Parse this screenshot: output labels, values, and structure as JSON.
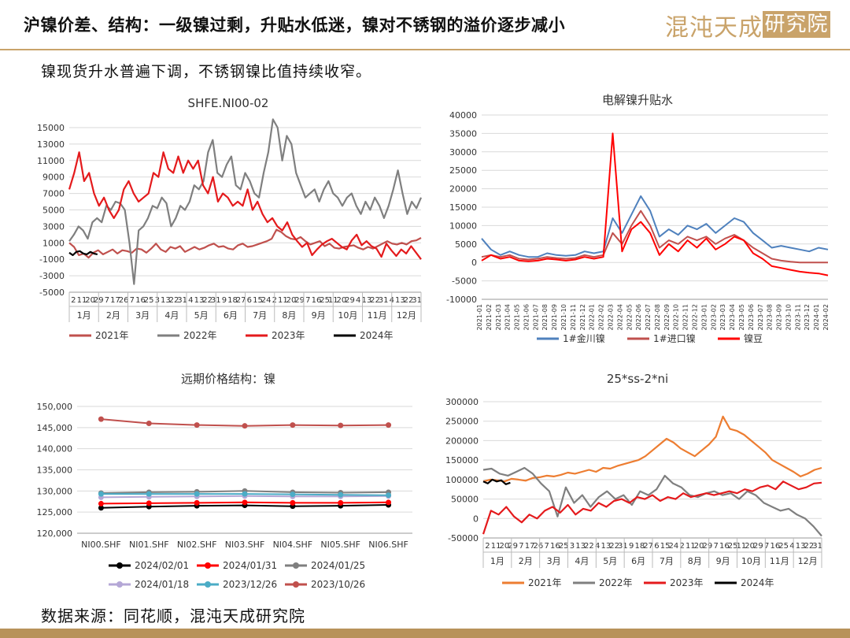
{
  "header": {
    "title": "沪镍价差、结构：一级镍过剩，升贴水低迷，镍对不锈钢的溢价逐步减小",
    "logo_main": "混沌天成",
    "logo_box": "研究院",
    "subtitle": "镍现货升水普遍下调，不锈钢镍比值持续收窄。"
  },
  "footer": {
    "source": "数据来源：同花顺，混沌天成研究院"
  },
  "colors": {
    "accent": "#c9a36a",
    "footer_bar": "#b8925a"
  },
  "chart_data": [
    {
      "type": "line",
      "title": "SHFE.NI00-02",
      "ylim": [
        -5000,
        15000
      ],
      "yticks": [
        "15000",
        "13000",
        "11000",
        "9000",
        "7000",
        "5000",
        "3000",
        "1000",
        "-1000",
        "-3000",
        "-5000"
      ],
      "x_day_ticks": [
        "2",
        "11",
        "20",
        "29",
        "7",
        "17",
        "26",
        "7",
        "16",
        "25",
        "3",
        "13",
        "22",
        "31",
        "4",
        "13",
        "22",
        "31",
        "9",
        "18",
        "27",
        "6",
        "15",
        "24",
        "2",
        "11",
        "20",
        "29",
        "7",
        "16",
        "25",
        "11",
        "20",
        "29",
        "4",
        "13",
        "22",
        "31",
        "4",
        "13",
        "22",
        "31"
      ],
      "months": [
        "1月",
        "2月",
        "3月",
        "4月",
        "5月",
        "6月",
        "7月",
        "8月",
        "9月",
        "10月",
        "11月",
        "12月"
      ],
      "series": [
        {
          "name": "2021年",
          "color": "#c0504d",
          "values": [
            1000,
            500,
            -500,
            -300,
            -800,
            -200,
            100,
            -400,
            -100,
            200,
            -300,
            100,
            0,
            -200,
            300,
            200,
            -200,
            300,
            900,
            200,
            -100,
            500,
            300,
            600,
            -100,
            200,
            500,
            200,
            400,
            700,
            900,
            500,
            600,
            300,
            200,
            700,
            900,
            500,
            600,
            800,
            1000,
            1200,
            1500,
            2600,
            2300,
            1800,
            1500,
            1400,
            1700,
            1200,
            800,
            1000,
            1200,
            600,
            900,
            400,
            300,
            500,
            600,
            700,
            400,
            200,
            500,
            300,
            600,
            900,
            1200,
            900,
            800,
            1000,
            800,
            1200,
            1300,
            1600
          ]
        },
        {
          "name": "2022年",
          "color": "#7f7f7f",
          "values": [
            1200,
            2000,
            3000,
            2500,
            1500,
            3500,
            4000,
            3500,
            5500,
            5000,
            6000,
            5800,
            5000,
            1000,
            -4000,
            2500,
            3000,
            4000,
            5500,
            5200,
            6500,
            5800,
            3000,
            4000,
            5500,
            5000,
            6000,
            8000,
            7500,
            8500,
            12000,
            13500,
            9500,
            9000,
            10500,
            11500,
            8000,
            7500,
            9500,
            8500,
            7000,
            6500,
            9500,
            12000,
            16000,
            15000,
            11000,
            14000,
            13000,
            9500,
            8000,
            6500,
            7000,
            7500,
            6000,
            7500,
            8500,
            7000,
            6500,
            5500,
            6500,
            7000,
            5500,
            4500,
            6000,
            5000,
            6500,
            5500,
            4000,
            5500,
            7500,
            9800,
            7000,
            4500,
            6000,
            5200,
            6500
          ]
        },
        {
          "name": "2023年",
          "color": "#e41a1c",
          "values": [
            7500,
            9500,
            12000,
            8500,
            9500,
            7000,
            5500,
            6500,
            5000,
            4000,
            5000,
            7500,
            8500,
            7000,
            6000,
            6500,
            7000,
            9500,
            9000,
            12000,
            10000,
            9500,
            11500,
            9500,
            11000,
            10000,
            11000,
            8000,
            7000,
            9000,
            6000,
            7000,
            6500,
            5500,
            6000,
            5500,
            7500,
            5000,
            6000,
            4500,
            3500,
            4000,
            3000,
            2500,
            3500,
            2000,
            1200,
            500,
            1000,
            -500,
            200,
            800,
            1200,
            1500,
            1000,
            500,
            200,
            1300,
            2000,
            700,
            1200,
            600,
            300,
            -700,
            900,
            100,
            -600,
            200,
            -300,
            600,
            -200,
            -1000
          ]
        },
        {
          "name": "2024年",
          "color": "#000000",
          "values": [
            -200,
            -500,
            -100,
            0,
            -300,
            -400,
            -100,
            -300,
            -400
          ]
        }
      ]
    },
    {
      "type": "line",
      "title": "电解镍升贴水",
      "ylim": [
        -10000,
        40000
      ],
      "yticks": [
        "40000",
        "35000",
        "30000",
        "25000",
        "20000",
        "15000",
        "10000",
        "5000",
        "0",
        "-5000",
        "-10000"
      ],
      "x": [
        "2021-01",
        "2021-02",
        "2021-03",
        "2021-04",
        "2021-05",
        "2021-06",
        "2021-07",
        "2021-08",
        "2021-09",
        "2021-10",
        "2021-11",
        "2021-12",
        "2022-01",
        "2022-02",
        "2022-03",
        "2022-04",
        "2022-05",
        "2022-06",
        "2022-07",
        "2022-08",
        "2022-09",
        "2022-10",
        "2022-11",
        "2022-12",
        "2023-01",
        "2023-02",
        "2023-03",
        "2023-04",
        "2023-05",
        "2023-06",
        "2023-07",
        "2023-08",
        "2023-09",
        "2023-10",
        "2023-11",
        "2023-12",
        "2024-01",
        "2024-02"
      ],
      "series": [
        {
          "name": "1#金川镍",
          "color": "#4f81bd",
          "values": [
            6500,
            3500,
            2000,
            3000,
            2000,
            1500,
            1500,
            2500,
            2000,
            1800,
            2000,
            3000,
            2500,
            3000,
            12000,
            8000,
            13000,
            18000,
            14000,
            7000,
            9000,
            7500,
            10000,
            9000,
            10500,
            8000,
            10000,
            12000,
            11000,
            8000,
            6000,
            4000,
            4500,
            4000,
            3500,
            3000,
            4000,
            3500
          ]
        },
        {
          "name": "1#进口镍",
          "color": "#c0504d",
          "values": [
            1500,
            2000,
            1500,
            2000,
            1000,
            800,
            1000,
            1500,
            1200,
            1000,
            1200,
            2000,
            1500,
            2000,
            8000,
            5000,
            10000,
            14000,
            10000,
            4000,
            6000,
            5000,
            7000,
            6000,
            7000,
            5000,
            6500,
            7500,
            6000,
            4000,
            2500,
            1000,
            500,
            200,
            0,
            0,
            0,
            0
          ]
        },
        {
          "name": "镍豆",
          "color": "#ff0000",
          "values": [
            500,
            2000,
            1000,
            1500,
            500,
            300,
            500,
            1000,
            800,
            500,
            800,
            1500,
            1000,
            1500,
            35000,
            3000,
            9000,
            11000,
            8000,
            2000,
            5000,
            3000,
            6000,
            4000,
            6500,
            3500,
            5000,
            7000,
            6000,
            2500,
            1000,
            -1000,
            -1500,
            -2000,
            -2500,
            -2800,
            -3000,
            -3500
          ]
        }
      ]
    },
    {
      "type": "line",
      "title": "远期价格结构：镍",
      "ylim": [
        120000,
        150000
      ],
      "yticks": [
        "150,000",
        "145,000",
        "140,000",
        "135,000",
        "130,000",
        "125,000",
        "120,000"
      ],
      "categories": [
        "NI00.SHF",
        "NI01.SHF",
        "NI02.SHF",
        "NI03.SHF",
        "NI04.SHF",
        "NI05.SHF",
        "NI06.SHF"
      ],
      "series": [
        {
          "name": "2024/02/01",
          "color": "#000000",
          "values": [
            126000,
            126300,
            126500,
            126600,
            126400,
            126500,
            126700
          ]
        },
        {
          "name": "2024/01/31",
          "color": "#ff0000",
          "values": [
            127000,
            127100,
            127200,
            127300,
            127200,
            127200,
            127300
          ]
        },
        {
          "name": "2024/01/25",
          "color": "#7f7f7f",
          "values": [
            129500,
            129700,
            129800,
            130000,
            129700,
            129600,
            129700
          ]
        },
        {
          "name": "2024/01/18",
          "color": "#b4a7d6",
          "values": [
            128500,
            128600,
            128700,
            128800,
            128700,
            128700,
            128800
          ]
        },
        {
          "name": "2023/12/26",
          "color": "#4bacc6",
          "values": [
            129300,
            129300,
            129300,
            129300,
            129200,
            129100,
            129000
          ]
        },
        {
          "name": "2023/10/26",
          "color": "#c0504d",
          "values": [
            147000,
            146000,
            145600,
            145400,
            145600,
            145500,
            145600
          ]
        }
      ]
    },
    {
      "type": "line",
      "title": "25*ss-2*ni",
      "ylim": [
        -50000,
        300000
      ],
      "yticks": [
        "300000",
        "250000",
        "200000",
        "150000",
        "100000",
        "50000",
        "0",
        "-50000"
      ],
      "x_day_ticks": [
        "2",
        "11",
        "20",
        "29",
        "7",
        "17",
        "26",
        "7",
        "16",
        "25",
        "3",
        "13",
        "22",
        "4",
        "13",
        "22",
        "31",
        "9",
        "18",
        "27",
        "6",
        "15",
        "24",
        "2",
        "11",
        "20",
        "29",
        "7",
        "16",
        "25",
        "11",
        "20",
        "29",
        "7",
        "16",
        "25",
        "4",
        "13",
        "22",
        "31"
      ],
      "months": [
        "1月",
        "2月",
        "3月",
        "4月",
        "5月",
        "6月",
        "7月",
        "8月",
        "9月",
        "10月",
        "11月",
        "12月"
      ],
      "series": [
        {
          "name": "2021年",
          "color": "#ed7d31",
          "values": [
            95000,
            100000,
            98000,
            95000,
            102000,
            100000,
            97000,
            104000,
            106000,
            110000,
            108000,
            112000,
            118000,
            115000,
            120000,
            125000,
            120000,
            130000,
            128000,
            135000,
            140000,
            145000,
            150000,
            160000,
            175000,
            190000,
            205000,
            195000,
            180000,
            170000,
            160000,
            175000,
            190000,
            210000,
            262000,
            230000,
            225000,
            215000,
            200000,
            185000,
            170000,
            150000,
            140000,
            130000,
            120000,
            108000,
            115000,
            125000,
            130000
          ]
        },
        {
          "name": "2022年",
          "color": "#7f7f7f",
          "values": [
            125000,
            128000,
            115000,
            110000,
            120000,
            130000,
            115000,
            90000,
            70000,
            5000,
            80000,
            40000,
            60000,
            30000,
            55000,
            70000,
            50000,
            60000,
            35000,
            70000,
            60000,
            75000,
            110000,
            90000,
            80000,
            60000,
            55000,
            65000,
            70000,
            60000,
            65000,
            50000,
            70000,
            60000,
            40000,
            30000,
            20000,
            25000,
            10000,
            0,
            -20000,
            -45000
          ]
        },
        {
          "name": "2023年",
          "color": "#e41a1c",
          "values": [
            -40000,
            20000,
            10000,
            30000,
            5000,
            -10000,
            10000,
            0,
            20000,
            30000,
            15000,
            35000,
            10000,
            25000,
            20000,
            40000,
            30000,
            45000,
            50000,
            40000,
            55000,
            50000,
            60000,
            45000,
            55000,
            50000,
            65000,
            55000,
            60000,
            65000,
            60000,
            65000,
            70000,
            65000,
            75000,
            70000,
            80000,
            85000,
            75000,
            95000,
            85000,
            75000,
            80000,
            90000,
            92000
          ]
        },
        {
          "name": "2024年",
          "color": "#000000",
          "values": [
            95000,
            90000,
            100000,
            95000,
            98000,
            88000,
            92000
          ]
        }
      ]
    }
  ]
}
